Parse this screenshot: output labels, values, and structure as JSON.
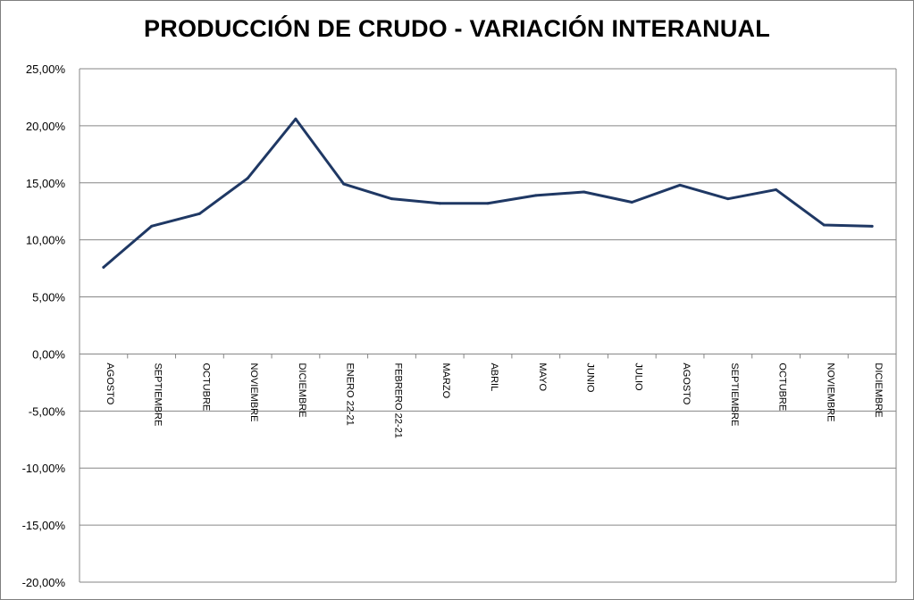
{
  "chart_data": {
    "type": "line",
    "title": "PRODUCCIÓN DE CRUDO - VARIACIÓN INTERANUAL",
    "xlabel": "",
    "ylabel": "",
    "categories": [
      "AGOSTO",
      "SEPTIEMBRE",
      "OCTUBRE",
      "NOVIEMBRE",
      "DICIEMBRE",
      "ENERO 22-21",
      "FEBRERO 22-21",
      "MARZO",
      "ABRIL",
      "MAYO",
      "JUNIO",
      "JULIO",
      "AGOSTO",
      "SEPTIEMBRE",
      "OCTUBRE",
      "NOVIEMBRE",
      "DICIEMBRE"
    ],
    "series": [
      {
        "values": [
          7.6,
          11.2,
          12.3,
          15.4,
          20.6,
          14.9,
          13.6,
          13.2,
          13.2,
          13.9,
          14.2,
          13.3,
          14.8,
          13.6,
          14.4,
          11.3,
          11.2
        ]
      }
    ],
    "ylim": [
      -20,
      25
    ],
    "y_ticks": [
      "25,00%",
      "20,00%",
      "15,00%",
      "10,00%",
      "5,00%",
      "0,00%",
      "-5,00%",
      "-10,00%",
      "-15,00%",
      "-20,00%"
    ],
    "grid": true,
    "legend": "none",
    "line_color": "#1f3864"
  }
}
